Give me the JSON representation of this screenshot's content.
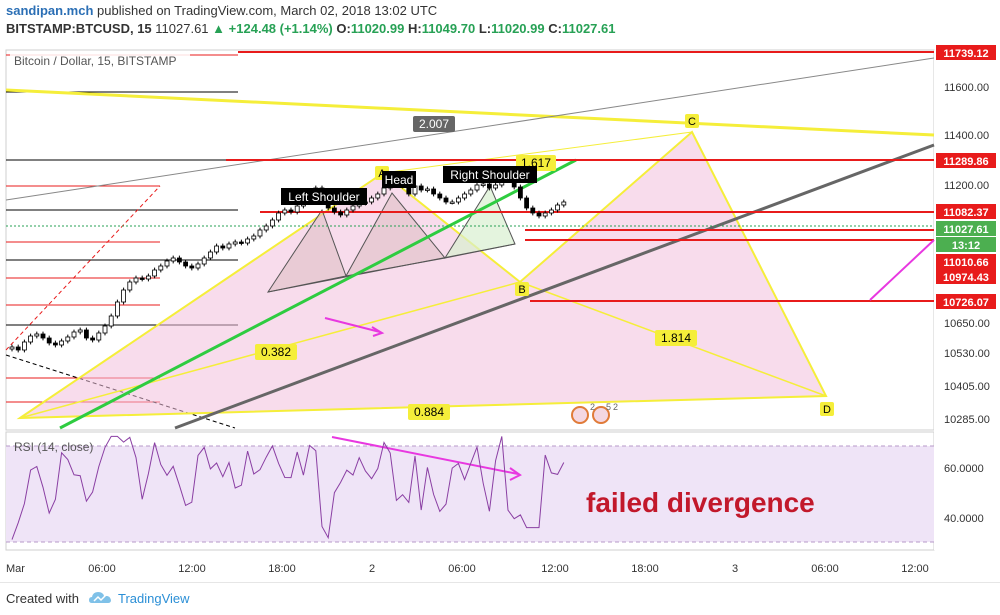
{
  "header": {
    "author": "sandipan.mch",
    "published_text": "published on TradingView.com, March 02, 2018 13:02 UTC",
    "symbol": "BITSTAMP:BTCUSD, 15",
    "last": "11027.61",
    "change": "+124.48 (+1.14%)",
    "o_label": "O:",
    "o_value": "11020.99",
    "h_label": "H:",
    "h_value": "11049.70",
    "l_label": "L:",
    "l_value": "11020.99",
    "c_label": "C:",
    "c_value": "11027.61"
  },
  "legend": {
    "text": "Bitcoin / Dollar, 15, BITSTAMP"
  },
  "rsi": {
    "title": "RSI (14, close)",
    "ticks": [
      "60.0000",
      "40.0000"
    ]
  },
  "annotation": {
    "text": "failed divergence"
  },
  "footer": {
    "created_with": "Created with",
    "brand": "TradingView"
  },
  "colors": {
    "up": "#27a155",
    "down": "#000000",
    "red_level": "#e81b1b",
    "pattern_yellow": "#f5ee3a",
    "pink_fill": "#f3c0dc",
    "magenta": "#e838e0",
    "rsi_band": "#efe4f7",
    "rsi_line": "#8a3fa3",
    "trend_green": "#2ecc40",
    "trend_gray": "#666666"
  },
  "chart_data": {
    "type": "candlestick",
    "x_axis_labels": [
      "Mar",
      "06:00",
      "12:00",
      "18:00",
      "2",
      "06:00",
      "12:00",
      "18:00",
      "3",
      "06:00",
      "12:00"
    ],
    "y_axis_ticks": [
      "11600.00",
      "11400.00",
      "11200.00",
      "10650.00",
      "10530.00",
      "10405.00",
      "10285.00"
    ],
    "price_tags": [
      {
        "label": "11739.12",
        "value": 11739.12,
        "style": "red"
      },
      {
        "label": "11289.86",
        "value": 11289.86,
        "style": "red"
      },
      {
        "label": "11082.37",
        "value": 11082.37,
        "style": "red"
      },
      {
        "label": "11027.61",
        "value": 11027.61,
        "style": "green"
      },
      {
        "label": "13:12",
        "value": 10985,
        "style": "green"
      },
      {
        "label": "11010.66",
        "value": 11010.66,
        "style": "red"
      },
      {
        "label": "10974.43",
        "value": 10974.43,
        "style": "red"
      },
      {
        "label": "10726.07",
        "value": 10726.07,
        "style": "red"
      }
    ],
    "pattern_labels": {
      "left_shoulder": "Left Shoulder",
      "head": "Head",
      "right_shoulder": "Right Shoulder",
      "point_a": "A",
      "point_b": "B",
      "point_c": "C",
      "point_d": "D"
    },
    "ratios": [
      "2.007",
      "1.617",
      "0.382",
      "1.814",
      "0.884"
    ],
    "close_series": [
      10315,
      10300,
      10340,
      10370,
      10380,
      10360,
      10335,
      10325,
      10345,
      10365,
      10390,
      10400,
      10360,
      10350,
      10385,
      10420,
      10470,
      10540,
      10600,
      10640,
      10660,
      10655,
      10670,
      10700,
      10720,
      10745,
      10760,
      10740,
      10720,
      10710,
      10730,
      10760,
      10790,
      10820,
      10810,
      10830,
      10840,
      10835,
      10855,
      10870,
      10900,
      10920,
      10950,
      10985,
      11000,
      10990,
      11020,
      11045,
      11090,
      11110,
      11060,
      11010,
      10990,
      10975,
      11000,
      11020,
      11035,
      11040,
      11060,
      11080,
      11110,
      11145,
      11140,
      11120,
      11080,
      11120,
      11100,
      11105,
      11080,
      11060,
      11040,
      11040,
      11060,
      11080,
      11100,
      11125,
      11130,
      11110,
      11125,
      11170,
      11150,
      11115,
      11060,
      11010,
      10985,
      10970,
      10985,
      11000,
      11025,
      11040
    ]
  }
}
